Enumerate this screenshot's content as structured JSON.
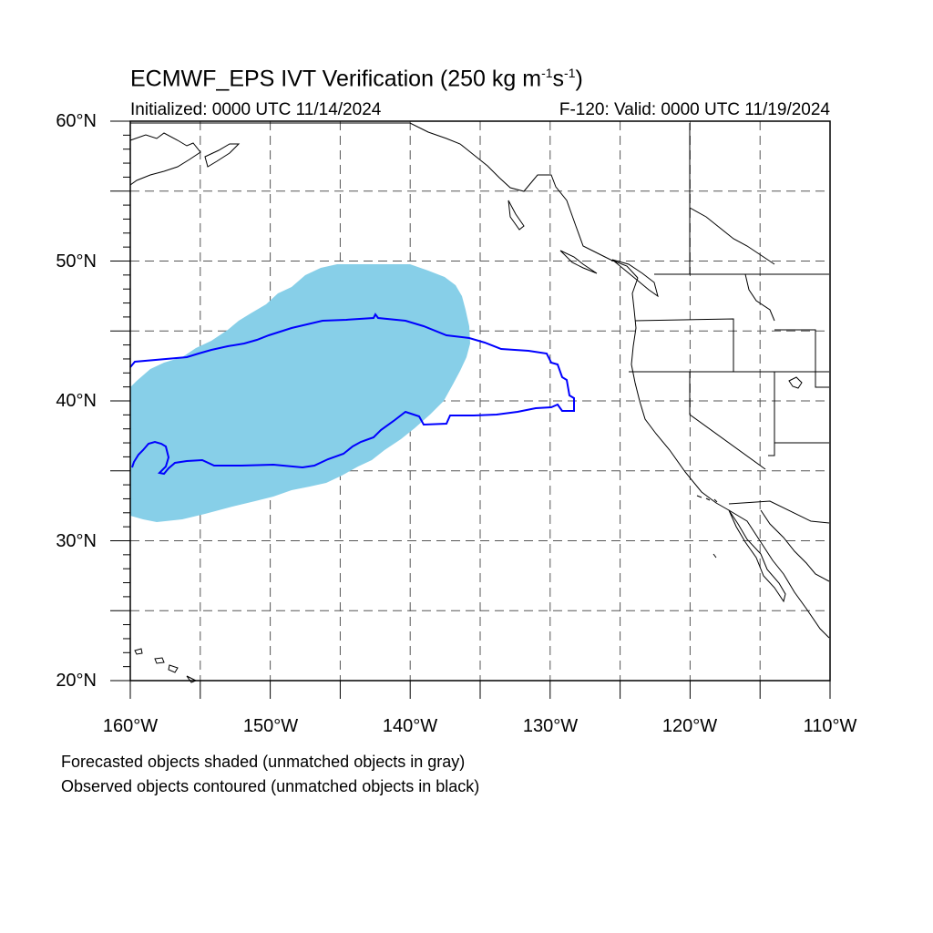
{
  "title": {
    "main": "ECMWF_EPS IVT Verification (250 kg m",
    "exp1": "-1",
    "mid": "s",
    "exp2": "-1",
    "end": ")"
  },
  "subtitle_left": "Initialized: 0000 UTC 11/14/2024",
  "subtitle_right": "F-120: Valid: 0000 UTC 11/19/2024",
  "map": {
    "lon_range": [
      -160,
      -110
    ],
    "lat_range": [
      20,
      60
    ],
    "gridlines": "dashed",
    "forecast_color": "#87cfe8",
    "observed_color": "#0000ff",
    "coast_color": "#000000"
  },
  "axes": {
    "y_labels": [
      "60°N",
      "50°N",
      "40°N",
      "30°N",
      "20°N"
    ],
    "x_labels": [
      "160°W",
      "150°W",
      "140°W",
      "130°W",
      "120°W",
      "110°W"
    ]
  },
  "legend_notes": [
    "Forecasted objects shaded (unmatched objects in gray)",
    "Observed objects contoured (unmatched objects in black)"
  ]
}
